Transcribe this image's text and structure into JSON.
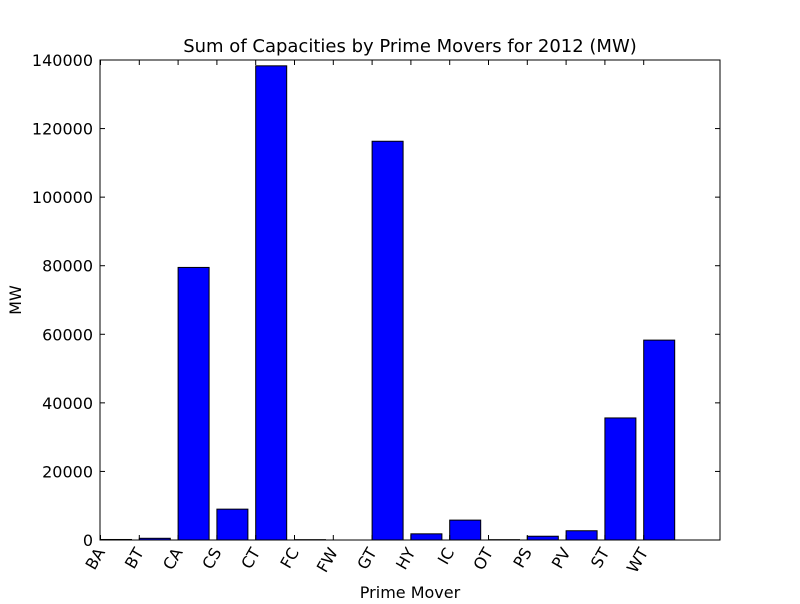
{
  "chart_data": {
    "type": "bar",
    "title": "Sum of Capacities by Prime Movers for 2012 (MW)",
    "xlabel": "Prime Mover",
    "ylabel": "MW",
    "categories": [
      "BA",
      "BT",
      "CA",
      "CS",
      "CT",
      "FC",
      "FW",
      "GT",
      "HY",
      "IC",
      "OT",
      "PS",
      "PV",
      "ST",
      "WT"
    ],
    "values": [
      150,
      500,
      79500,
      9000,
      138300,
      100,
      0,
      116300,
      1800,
      5800,
      100,
      1100,
      2700,
      35600,
      58300
    ],
    "ylim": [
      0,
      140000
    ],
    "yticks": [
      0,
      20000,
      40000,
      60000,
      80000,
      100000,
      120000,
      140000
    ],
    "grid": false,
    "legend": "none",
    "colors": {
      "bar_fill": "#0000ff",
      "bar_edge": "#000000",
      "axes": "#000000"
    }
  }
}
